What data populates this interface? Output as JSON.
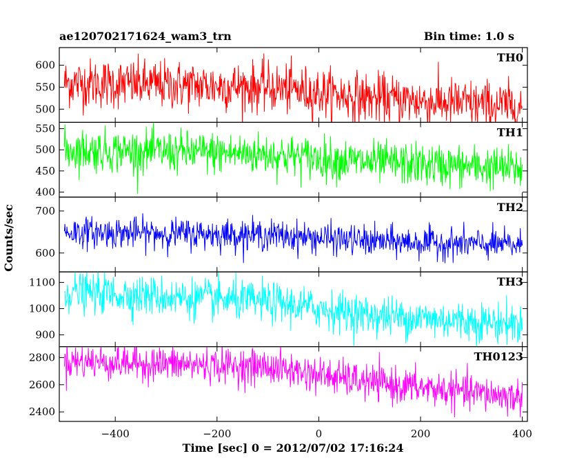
{
  "chart_data": {
    "type": "line",
    "title": "ae120702171624_wam3_trn",
    "subtitle": "Bin time: 1.0 s",
    "xlabel": "Time [sec] 0 = 2012/07/02 17:16:24",
    "ylabel": "Counts/sec",
    "xlim": [
      -510,
      410
    ],
    "x_ticks": [
      -400,
      -200,
      0,
      200,
      400
    ],
    "x": {
      "start": -500,
      "end": 400,
      "step": 1
    },
    "series": [
      {
        "name": "TH0",
        "color": "#ff0000",
        "ylim": [
          470,
          640
        ],
        "y_ticks": [
          500,
          550,
          600
        ],
        "trend": [
          [
            -500,
            560
          ],
          [
            -100,
            550
          ],
          [
            100,
            525
          ],
          [
            400,
            505
          ]
        ],
        "noise_sd": 28
      },
      {
        "name": "TH1",
        "color": "#00ff00",
        "ylim": [
          388,
          565
        ],
        "y_ticks": [
          400,
          450,
          500,
          550
        ],
        "trend": [
          [
            -500,
            500
          ],
          [
            -100,
            490
          ],
          [
            100,
            470
          ],
          [
            400,
            455
          ]
        ],
        "noise_sd": 25
      },
      {
        "name": "TH2",
        "color": "#0000ff",
        "ylim": [
          555,
          733
        ],
        "y_ticks": [
          600,
          700
        ],
        "trend": [
          [
            -500,
            650
          ],
          [
            -100,
            643
          ],
          [
            100,
            628
          ],
          [
            400,
            618
          ]
        ],
        "noise_sd": 18
      },
      {
        "name": "TH3",
        "color": "#00ffff",
        "ylim": [
          855,
          1140
        ],
        "y_ticks": [
          900,
          1000,
          1100
        ],
        "trend": [
          [
            -500,
            1065
          ],
          [
            -100,
            1025
          ],
          [
            100,
            975
          ],
          [
            400,
            940
          ]
        ],
        "noise_sd": 38
      },
      {
        "name": "TH0123",
        "color": "#ff00ff",
        "ylim": [
          2330,
          2880
        ],
        "y_ticks": [
          2400,
          2600,
          2800
        ],
        "trend": [
          [
            -500,
            2775
          ],
          [
            -100,
            2730
          ],
          [
            100,
            2615
          ],
          [
            400,
            2505
          ]
        ],
        "noise_sd": 65
      }
    ]
  }
}
